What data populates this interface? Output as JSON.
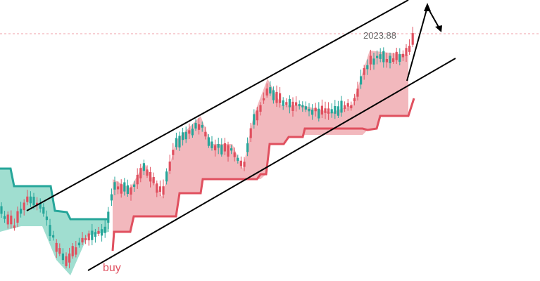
{
  "chart": {
    "price_label": "2023.88",
    "signal_label": "buy"
  }
}
